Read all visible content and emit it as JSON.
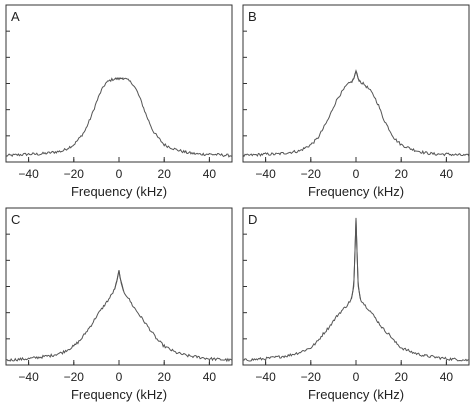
{
  "chart_data": [
    {
      "type": "line",
      "panel_label": "A",
      "xlabel": "Frequency (kHz)",
      "xlim": [
        -50,
        50
      ],
      "ylim": [
        0,
        1
      ],
      "x_ticks": [
        -40,
        -20,
        0,
        20,
        40
      ],
      "y_tick_count": 6,
      "series": [
        {
          "x": [
            -50,
            -45,
            -40,
            -35,
            -30,
            -25,
            -20,
            -17,
            -15,
            -12,
            -10,
            -8,
            -6,
            -4,
            -2,
            0,
            2,
            4,
            6,
            8,
            10,
            12,
            15,
            17,
            20,
            25,
            30,
            35,
            40,
            45,
            50
          ],
          "y": [
            0.04,
            0.045,
            0.05,
            0.05,
            0.06,
            0.07,
            0.11,
            0.16,
            0.2,
            0.3,
            0.38,
            0.45,
            0.5,
            0.52,
            0.53,
            0.53,
            0.535,
            0.52,
            0.5,
            0.45,
            0.38,
            0.3,
            0.2,
            0.16,
            0.11,
            0.08,
            0.06,
            0.05,
            0.05,
            0.045,
            0.04
          ]
        }
      ]
    },
    {
      "type": "line",
      "panel_label": "B",
      "xlabel": "Frequency (kHz)",
      "xlim": [
        -50,
        50
      ],
      "ylim": [
        0,
        1
      ],
      "x_ticks": [
        -40,
        -20,
        0,
        20,
        40
      ],
      "y_tick_count": 6,
      "series": [
        {
          "x": [
            -50,
            -45,
            -40,
            -35,
            -30,
            -25,
            -20,
            -17,
            -15,
            -12,
            -10,
            -8,
            -6,
            -4,
            -2,
            -1,
            0,
            1,
            2,
            4,
            6,
            8,
            10,
            12,
            15,
            17,
            20,
            25,
            30,
            35,
            40,
            45,
            50
          ],
          "y": [
            0.04,
            0.045,
            0.05,
            0.05,
            0.06,
            0.07,
            0.11,
            0.15,
            0.2,
            0.28,
            0.35,
            0.41,
            0.45,
            0.49,
            0.51,
            0.53,
            0.58,
            0.53,
            0.51,
            0.49,
            0.46,
            0.42,
            0.36,
            0.28,
            0.2,
            0.15,
            0.11,
            0.08,
            0.06,
            0.05,
            0.05,
            0.045,
            0.04
          ]
        }
      ]
    },
    {
      "type": "line",
      "panel_label": "C",
      "xlabel": "Frequency (kHz)",
      "xlim": [
        -50,
        50
      ],
      "ylim": [
        0,
        1
      ],
      "x_ticks": [
        -40,
        -20,
        0,
        20,
        40
      ],
      "y_tick_count": 6,
      "series": [
        {
          "x": [
            -50,
            -45,
            -40,
            -35,
            -30,
            -25,
            -20,
            -17,
            -15,
            -12,
            -10,
            -8,
            -6,
            -4,
            -2,
            -1,
            0,
            1,
            2,
            4,
            6,
            8,
            10,
            12,
            15,
            17,
            20,
            25,
            30,
            35,
            40,
            45,
            50
          ],
          "y": [
            0.03,
            0.035,
            0.04,
            0.05,
            0.06,
            0.08,
            0.12,
            0.16,
            0.2,
            0.26,
            0.31,
            0.35,
            0.39,
            0.43,
            0.48,
            0.53,
            0.6,
            0.52,
            0.47,
            0.43,
            0.38,
            0.34,
            0.3,
            0.26,
            0.2,
            0.16,
            0.12,
            0.08,
            0.06,
            0.05,
            0.04,
            0.035,
            0.03
          ]
        }
      ]
    },
    {
      "type": "line",
      "panel_label": "D",
      "xlabel": "Frequency (kHz)",
      "xlim": [
        -50,
        50
      ],
      "ylim": [
        0,
        1
      ],
      "x_ticks": [
        -40,
        -20,
        0,
        20,
        40
      ],
      "y_tick_count": 6,
      "series": [
        {
          "x": [
            -50,
            -45,
            -40,
            -35,
            -30,
            -25,
            -20,
            -17,
            -15,
            -12,
            -10,
            -8,
            -6,
            -4,
            -2,
            -1,
            -0.5,
            0,
            0.5,
            1,
            2,
            4,
            6,
            8,
            10,
            12,
            15,
            17,
            20,
            25,
            30,
            35,
            40,
            45,
            50
          ],
          "y": [
            0.03,
            0.035,
            0.04,
            0.05,
            0.06,
            0.08,
            0.11,
            0.15,
            0.19,
            0.24,
            0.28,
            0.32,
            0.35,
            0.38,
            0.42,
            0.5,
            0.7,
            0.93,
            0.7,
            0.5,
            0.42,
            0.38,
            0.35,
            0.31,
            0.27,
            0.23,
            0.19,
            0.15,
            0.11,
            0.08,
            0.06,
            0.05,
            0.04,
            0.035,
            0.03
          ]
        }
      ]
    }
  ]
}
